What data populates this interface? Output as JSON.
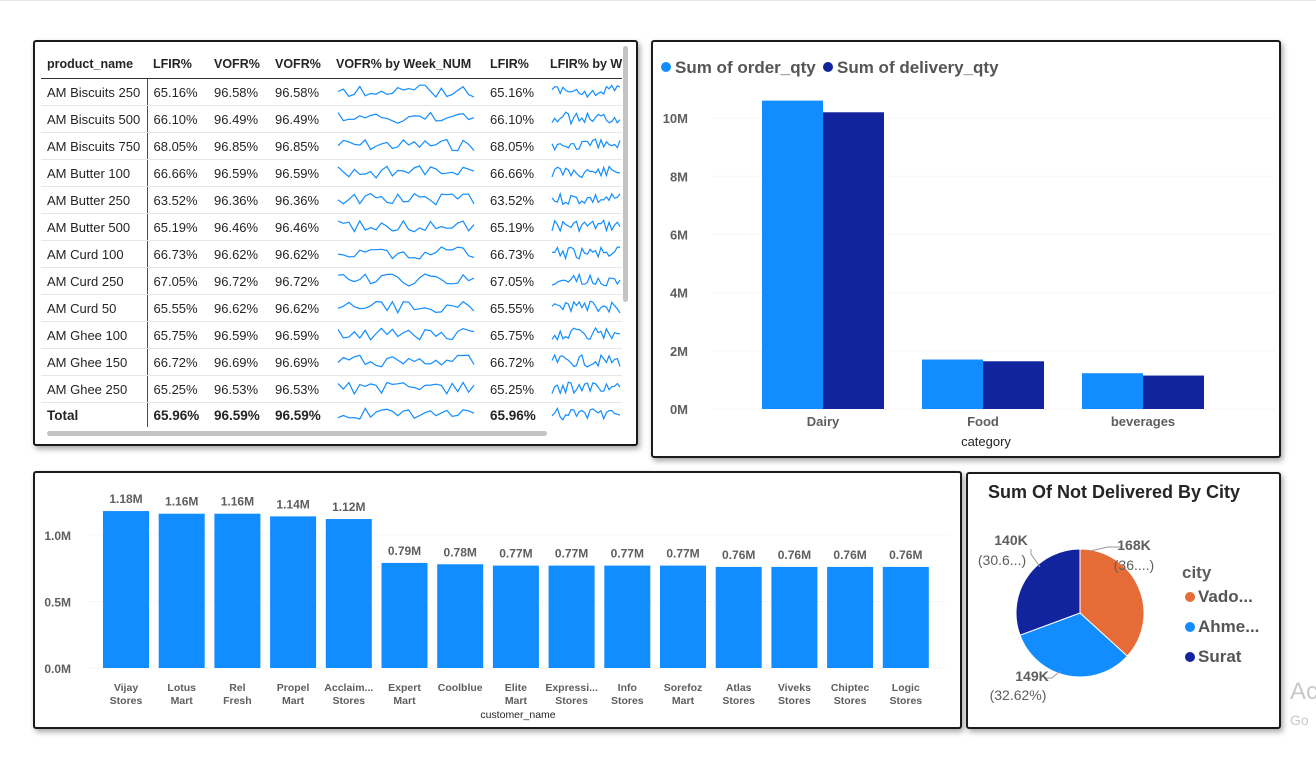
{
  "matrix": {
    "headers": [
      "product_name",
      "LFIR%",
      "VOFR%",
      "VOFR%",
      "VOFR% by Week_NUM",
      "LFIR%",
      "LFIR% by W"
    ],
    "rows": [
      {
        "name": "AM Biscuits 250",
        "lfir": "65.16%",
        "vofr": "96.58%",
        "vofr2": "96.58%",
        "lfir2": "65.16%"
      },
      {
        "name": "AM Biscuits 500",
        "lfir": "66.10%",
        "vofr": "96.49%",
        "vofr2": "96.49%",
        "lfir2": "66.10%"
      },
      {
        "name": "AM Biscuits 750",
        "lfir": "68.05%",
        "vofr": "96.85%",
        "vofr2": "96.85%",
        "lfir2": "68.05%"
      },
      {
        "name": "AM Butter 100",
        "lfir": "66.66%",
        "vofr": "96.59%",
        "vofr2": "96.59%",
        "lfir2": "66.66%"
      },
      {
        "name": "AM Butter 250",
        "lfir": "63.52%",
        "vofr": "96.36%",
        "vofr2": "96.36%",
        "lfir2": "63.52%"
      },
      {
        "name": "AM Butter 500",
        "lfir": "65.19%",
        "vofr": "96.46%",
        "vofr2": "96.46%",
        "lfir2": "65.19%"
      },
      {
        "name": "AM Curd 100",
        "lfir": "66.73%",
        "vofr": "96.62%",
        "vofr2": "96.62%",
        "lfir2": "66.73%"
      },
      {
        "name": "AM Curd 250",
        "lfir": "67.05%",
        "vofr": "96.72%",
        "vofr2": "96.72%",
        "lfir2": "67.05%"
      },
      {
        "name": "AM Curd 50",
        "lfir": "65.55%",
        "vofr": "96.62%",
        "vofr2": "96.62%",
        "lfir2": "65.55%"
      },
      {
        "name": "AM Ghee 100",
        "lfir": "65.75%",
        "vofr": "96.59%",
        "vofr2": "96.59%",
        "lfir2": "65.75%"
      },
      {
        "name": "AM Ghee 150",
        "lfir": "66.72%",
        "vofr": "96.69%",
        "vofr2": "96.69%",
        "lfir2": "66.72%"
      },
      {
        "name": "AM Ghee 250",
        "lfir": "65.25%",
        "vofr": "96.53%",
        "vofr2": "96.53%",
        "lfir2": "65.25%"
      }
    ],
    "total": {
      "name": "Total",
      "lfir": "65.96%",
      "vofr": "96.59%",
      "vofr2": "96.59%",
      "lfir2": "65.96%"
    },
    "sparkline_color": "#118dff"
  },
  "chart_data": [
    {
      "type": "bar",
      "title": "",
      "xlabel": "category",
      "ylabel": "",
      "categories": [
        "Dairy",
        "Food",
        "beverages"
      ],
      "series": [
        {
          "name": "Sum of order_qty",
          "color": "#118dff",
          "values": [
            10600000,
            1700000,
            1230000
          ]
        },
        {
          "name": "Sum of delivery_qty",
          "color": "#12239e",
          "values": [
            10200000,
            1640000,
            1150000
          ]
        }
      ],
      "yticks": [
        "0M",
        "2M",
        "4M",
        "6M",
        "8M",
        "10M"
      ],
      "ylim": [
        0,
        11000000
      ],
      "legend": "top-left",
      "grid": true
    },
    {
      "type": "bar",
      "title": "",
      "xlabel": "customer_name",
      "ylabel": "",
      "categories": [
        "Vijay Stores",
        "Lotus Mart",
        "Rel Fresh",
        "Propel Mart",
        "Acclaim... Stores",
        "Expert Mart",
        "Coolblue",
        "Elite Mart",
        "Expressi... Stores",
        "Info Stores",
        "Sorefoz Mart",
        "Atlas Stores",
        "Viveks Stores",
        "Chiptec Stores",
        "Logic Stores"
      ],
      "values": [
        1180000,
        1160000,
        1160000,
        1140000,
        1120000,
        790000,
        780000,
        770000,
        770000,
        770000,
        770000,
        760000,
        760000,
        760000,
        760000
      ],
      "data_labels": [
        "1.18M",
        "1.16M",
        "1.16M",
        "1.14M",
        "1.12M",
        "0.79M",
        "0.78M",
        "0.77M",
        "0.77M",
        "0.77M",
        "0.77M",
        "0.76M",
        "0.76M",
        "0.76M",
        "0.76M"
      ],
      "yticks": [
        "0.0M",
        "0.5M",
        "1.0M"
      ],
      "ylim": [
        0,
        1250000
      ],
      "color": "#118dff",
      "grid": true
    },
    {
      "type": "pie",
      "title": "Sum Of Not Delivered By City",
      "legend_title": "city",
      "legend": "right",
      "slices": [
        {
          "name": "Vado...",
          "value": 168000,
          "label": "168K",
          "pct_label": "(36....)",
          "color": "#e66c37"
        },
        {
          "name": "Ahme...",
          "value": 149000,
          "label": "149K",
          "pct_label": "(32.62%)",
          "color": "#118dff"
        },
        {
          "name": "Surat",
          "value": 140000,
          "label": "140K",
          "pct_label": "(30.6...)",
          "color": "#12239e"
        }
      ]
    }
  ],
  "watermark": {
    "line1": "Ac",
    "line2": "Go"
  }
}
